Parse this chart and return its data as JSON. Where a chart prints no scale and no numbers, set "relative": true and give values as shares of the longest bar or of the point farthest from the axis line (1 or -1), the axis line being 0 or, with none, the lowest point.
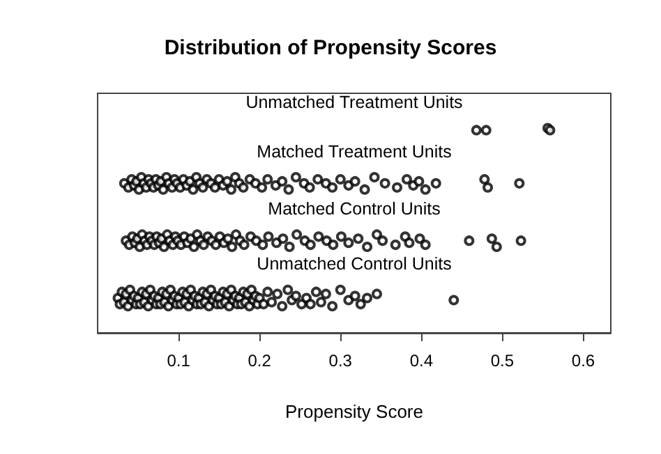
{
  "chart_data": {
    "type": "scatter",
    "title": "Distribution of Propensity Scores",
    "xlabel": "Propensity Score",
    "relative": true,
    "marker": "circle",
    "legend": false,
    "grid": false,
    "tick_labels": "x",
    "xlim": [
      0,
      0.634
    ],
    "xticks": [
      0.1,
      0.2,
      0.3,
      0.4,
      0.5,
      0.6
    ],
    "series": [
      {
        "name": "Unmatched Treatment Units",
        "color": "#000000",
        "x": [
          0.468,
          0.48,
          0.556,
          0.559
        ],
        "values": [
          0.99,
          0.99,
          1.0,
          0.99
        ]
      },
      {
        "name": "Matched Treatment Units",
        "color": "#000000",
        "x": [
          0.033,
          0.038,
          0.042,
          0.045,
          0.048,
          0.051,
          0.054,
          0.057,
          0.06,
          0.063,
          0.066,
          0.069,
          0.072,
          0.075,
          0.078,
          0.081,
          0.085,
          0.088,
          0.092,
          0.095,
          0.098,
          0.102,
          0.106,
          0.11,
          0.114,
          0.118,
          0.122,
          0.126,
          0.13,
          0.135,
          0.14,
          0.145,
          0.15,
          0.155,
          0.16,
          0.165,
          0.17,
          0.175,
          0.18,
          0.188,
          0.195,
          0.203,
          0.21,
          0.22,
          0.228,
          0.236,
          0.245,
          0.255,
          0.262,
          0.272,
          0.282,
          0.29,
          0.3,
          0.31,
          0.318,
          0.33,
          0.342,
          0.355,
          0.37,
          0.382,
          0.39,
          0.397,
          0.405,
          0.418,
          0.478,
          0.482,
          0.521
        ],
        "values": [
          0.73,
          0.71,
          0.75,
          0.72,
          0.74,
          0.7,
          0.76,
          0.73,
          0.71,
          0.75,
          0.73,
          0.71,
          0.75,
          0.72,
          0.74,
          0.7,
          0.76,
          0.73,
          0.71,
          0.75,
          0.73,
          0.71,
          0.75,
          0.72,
          0.74,
          0.7,
          0.76,
          0.73,
          0.71,
          0.75,
          0.73,
          0.71,
          0.75,
          0.72,
          0.74,
          0.7,
          0.76,
          0.73,
          0.71,
          0.75,
          0.73,
          0.71,
          0.75,
          0.72,
          0.74,
          0.7,
          0.76,
          0.73,
          0.71,
          0.75,
          0.73,
          0.71,
          0.75,
          0.72,
          0.74,
          0.7,
          0.76,
          0.73,
          0.71,
          0.75,
          0.72,
          0.74,
          0.7,
          0.73,
          0.75,
          0.71,
          0.73
        ]
      },
      {
        "name": "Matched Control Units",
        "color": "#000000",
        "x": [
          0.035,
          0.039,
          0.043,
          0.046,
          0.049,
          0.052,
          0.055,
          0.058,
          0.061,
          0.064,
          0.067,
          0.07,
          0.073,
          0.076,
          0.079,
          0.082,
          0.086,
          0.089,
          0.093,
          0.096,
          0.099,
          0.103,
          0.107,
          0.111,
          0.115,
          0.119,
          0.123,
          0.127,
          0.131,
          0.136,
          0.141,
          0.146,
          0.151,
          0.156,
          0.161,
          0.166,
          0.171,
          0.176,
          0.181,
          0.189,
          0.196,
          0.204,
          0.211,
          0.221,
          0.229,
          0.237,
          0.246,
          0.256,
          0.263,
          0.273,
          0.283,
          0.291,
          0.301,
          0.31,
          0.322,
          0.333,
          0.345,
          0.352,
          0.368,
          0.38,
          0.385,
          0.398,
          0.405,
          0.459,
          0.487,
          0.493,
          0.523
        ],
        "values": [
          0.45,
          0.43,
          0.47,
          0.44,
          0.46,
          0.42,
          0.48,
          0.45,
          0.43,
          0.47,
          0.45,
          0.43,
          0.47,
          0.44,
          0.46,
          0.42,
          0.48,
          0.45,
          0.43,
          0.47,
          0.45,
          0.43,
          0.47,
          0.44,
          0.46,
          0.42,
          0.48,
          0.45,
          0.43,
          0.47,
          0.45,
          0.43,
          0.47,
          0.44,
          0.46,
          0.42,
          0.48,
          0.45,
          0.43,
          0.47,
          0.45,
          0.43,
          0.47,
          0.44,
          0.46,
          0.42,
          0.48,
          0.45,
          0.43,
          0.47,
          0.45,
          0.43,
          0.47,
          0.44,
          0.46,
          0.42,
          0.48,
          0.45,
          0.43,
          0.47,
          0.44,
          0.46,
          0.43,
          0.45,
          0.46,
          0.42,
          0.45
        ]
      },
      {
        "name": "Unmatched Control Units",
        "color": "#000000",
        "x": [
          0.025,
          0.0275,
          0.03,
          0.0325,
          0.035,
          0.0375,
          0.04,
          0.0425,
          0.045,
          0.0475,
          0.05,
          0.0525,
          0.055,
          0.0575,
          0.06,
          0.0625,
          0.065,
          0.0675,
          0.07,
          0.0725,
          0.075,
          0.0775,
          0.08,
          0.0825,
          0.085,
          0.0875,
          0.09,
          0.0925,
          0.095,
          0.0975,
          0.1,
          0.1025,
          0.105,
          0.1075,
          0.11,
          0.1125,
          0.115,
          0.1175,
          0.12,
          0.1225,
          0.125,
          0.1275,
          0.13,
          0.1325,
          0.135,
          0.1375,
          0.14,
          0.1425,
          0.145,
          0.1475,
          0.15,
          0.1525,
          0.155,
          0.1575,
          0.16,
          0.1625,
          0.165,
          0.1675,
          0.17,
          0.1725,
          0.175,
          0.1775,
          0.18,
          0.1825,
          0.185,
          0.1875,
          0.19,
          0.1925,
          0.195,
          0.1975,
          0.2,
          0.205,
          0.21,
          0.215,
          0.222,
          0.228,
          0.235,
          0.24,
          0.245,
          0.252,
          0.258,
          0.263,
          0.27,
          0.276,
          0.282,
          0.29,
          0.3,
          0.31,
          0.318,
          0.325,
          0.333,
          0.345,
          0.44
        ],
        "values": [
          0.17,
          0.14,
          0.2,
          0.15,
          0.19,
          0.13,
          0.21,
          0.16,
          0.18,
          0.14,
          0.17,
          0.14,
          0.2,
          0.15,
          0.19,
          0.13,
          0.21,
          0.16,
          0.18,
          0.14,
          0.17,
          0.14,
          0.2,
          0.15,
          0.19,
          0.13,
          0.21,
          0.16,
          0.18,
          0.14,
          0.17,
          0.14,
          0.2,
          0.15,
          0.19,
          0.13,
          0.21,
          0.16,
          0.18,
          0.14,
          0.17,
          0.14,
          0.2,
          0.15,
          0.19,
          0.13,
          0.21,
          0.16,
          0.18,
          0.14,
          0.17,
          0.14,
          0.2,
          0.15,
          0.19,
          0.13,
          0.21,
          0.16,
          0.18,
          0.14,
          0.17,
          0.14,
          0.2,
          0.15,
          0.19,
          0.13,
          0.21,
          0.16,
          0.18,
          0.14,
          0.17,
          0.14,
          0.2,
          0.15,
          0.19,
          0.13,
          0.21,
          0.16,
          0.18,
          0.14,
          0.17,
          0.14,
          0.2,
          0.15,
          0.19,
          0.13,
          0.21,
          0.16,
          0.18,
          0.14,
          0.17,
          0.19,
          0.16
        ]
      }
    ]
  }
}
